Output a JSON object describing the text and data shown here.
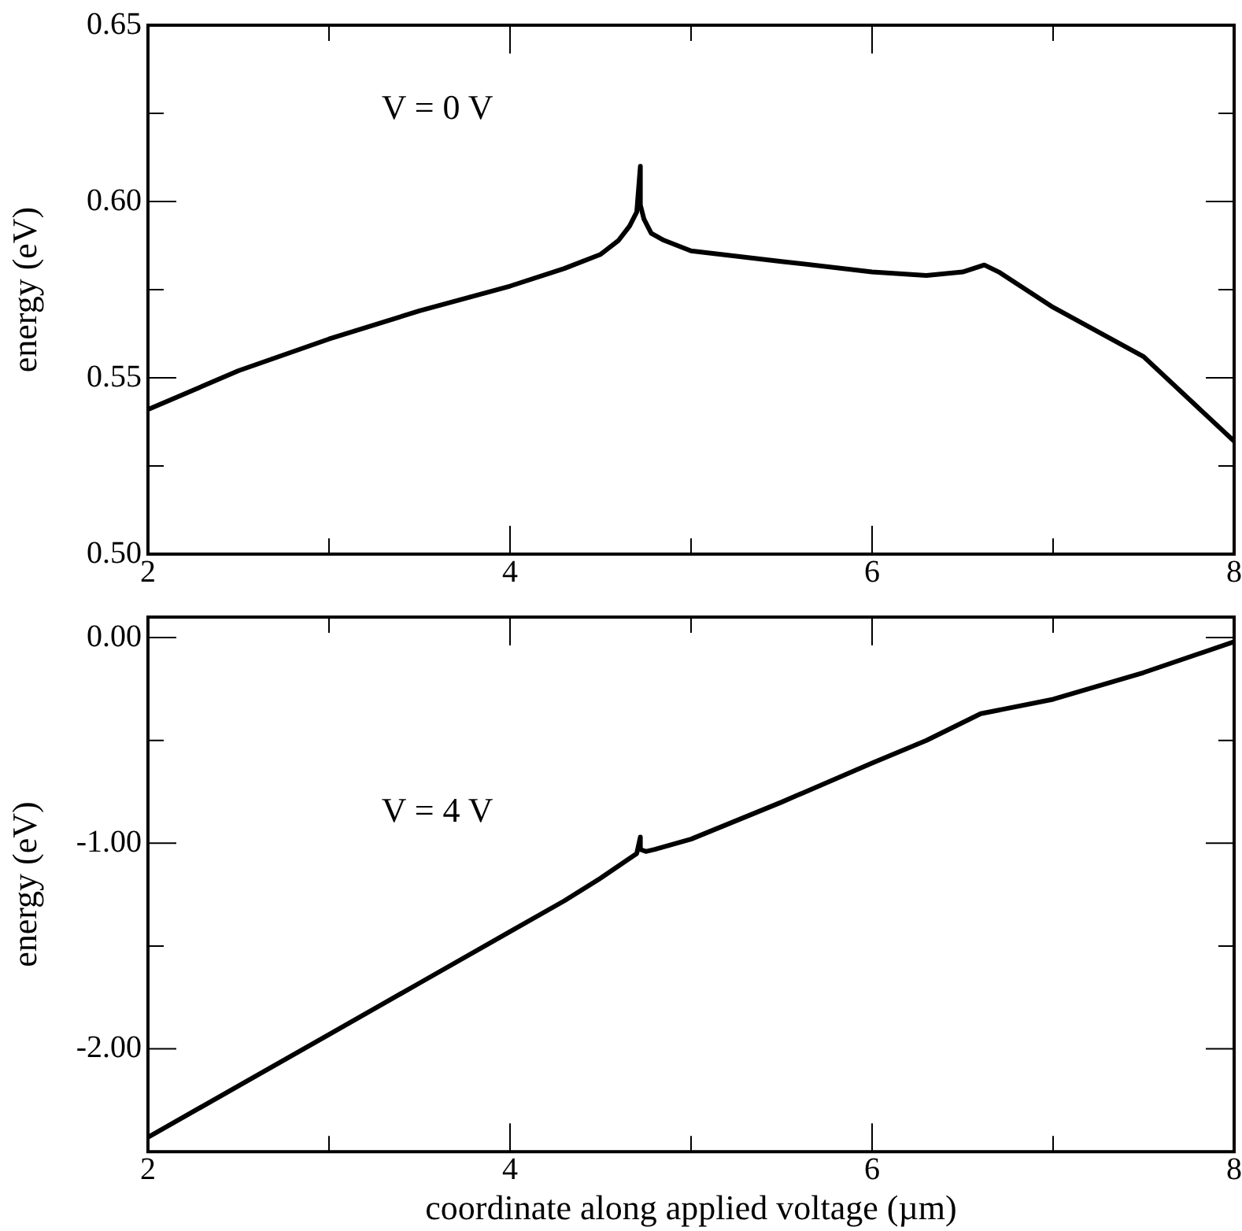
{
  "chart_data": [
    {
      "type": "line",
      "ylabel": "energy (eV)",
      "annotations": [
        "V = 0 V"
      ],
      "marker": "none",
      "x": [
        2,
        2.5,
        3,
        3.5,
        4,
        4.3,
        4.5,
        4.6,
        4.66,
        4.7,
        4.72,
        4.72,
        4.74,
        4.78,
        4.85,
        5,
        5.5,
        6,
        6.3,
        6.5,
        6.62,
        6.7,
        7,
        7.5,
        8
      ],
      "series": [
        {
          "color": "#000000",
          "values": [
            0.541,
            0.552,
            0.561,
            0.569,
            0.576,
            0.581,
            0.585,
            0.589,
            0.593,
            0.597,
            0.61,
            0.599,
            0.595,
            0.591,
            0.589,
            0.586,
            0.583,
            0.58,
            0.579,
            0.58,
            0.582,
            0.58,
            0.57,
            0.556,
            0.532
          ]
        }
      ],
      "xlim": [
        2,
        8
      ],
      "xticks": [
        2,
        {
          "value": 3,
          "label": null
        },
        4,
        {
          "value": 5,
          "label": null
        },
        6,
        {
          "value": 7,
          "label": null
        },
        8
      ],
      "ylim": [
        0.5,
        0.65
      ],
      "yticks": [
        "0.50",
        {
          "value": 0.525,
          "label": null
        },
        {
          "value": 0.55,
          "label": "0.55"
        },
        {
          "value": 0.575,
          "label": null
        },
        {
          "value": 0.6,
          "label": "0.60"
        },
        {
          "value": 0.625,
          "label": null
        },
        {
          "value": 0.65,
          "label": "0.65"
        }
      ]
    },
    {
      "type": "line",
      "xlabel": "coordinate along applied voltage (µm)",
      "ylabel": "energy (eV)",
      "annotations": [
        "V = 4 V"
      ],
      "marker": "none",
      "x": [
        2,
        2.5,
        3,
        3.5,
        4,
        4.3,
        4.5,
        4.65,
        4.7,
        4.72,
        4.72,
        4.75,
        4.8,
        5,
        5.5,
        6,
        6.3,
        6.6,
        7,
        7.5,
        8
      ],
      "series": [
        {
          "color": "#000000",
          "values": [
            -2.43,
            -2.18,
            -1.93,
            -1.68,
            -1.43,
            -1.28,
            -1.17,
            -1.08,
            -1.05,
            -0.97,
            -1.03,
            -1.04,
            -1.03,
            -0.98,
            -0.8,
            -0.61,
            -0.5,
            -0.37,
            -0.3,
            -0.17,
            -0.02
          ]
        }
      ],
      "xlim": [
        2,
        8
      ],
      "xticks": [
        2,
        {
          "value": 3,
          "label": null
        },
        4,
        {
          "value": 5,
          "label": null
        },
        6,
        {
          "value": 7,
          "label": null
        },
        8
      ],
      "ylim": [
        -2.5,
        0.1
      ],
      "yticks": [
        {
          "value": -2.5,
          "label": null
        },
        {
          "value": -2,
          "label": "-2.00"
        },
        {
          "value": -1.5,
          "label": null
        },
        {
          "value": -1,
          "label": "-1.00"
        },
        {
          "value": -0.5,
          "label": null
        },
        {
          "value": 0,
          "label": "0.00"
        }
      ]
    }
  ]
}
